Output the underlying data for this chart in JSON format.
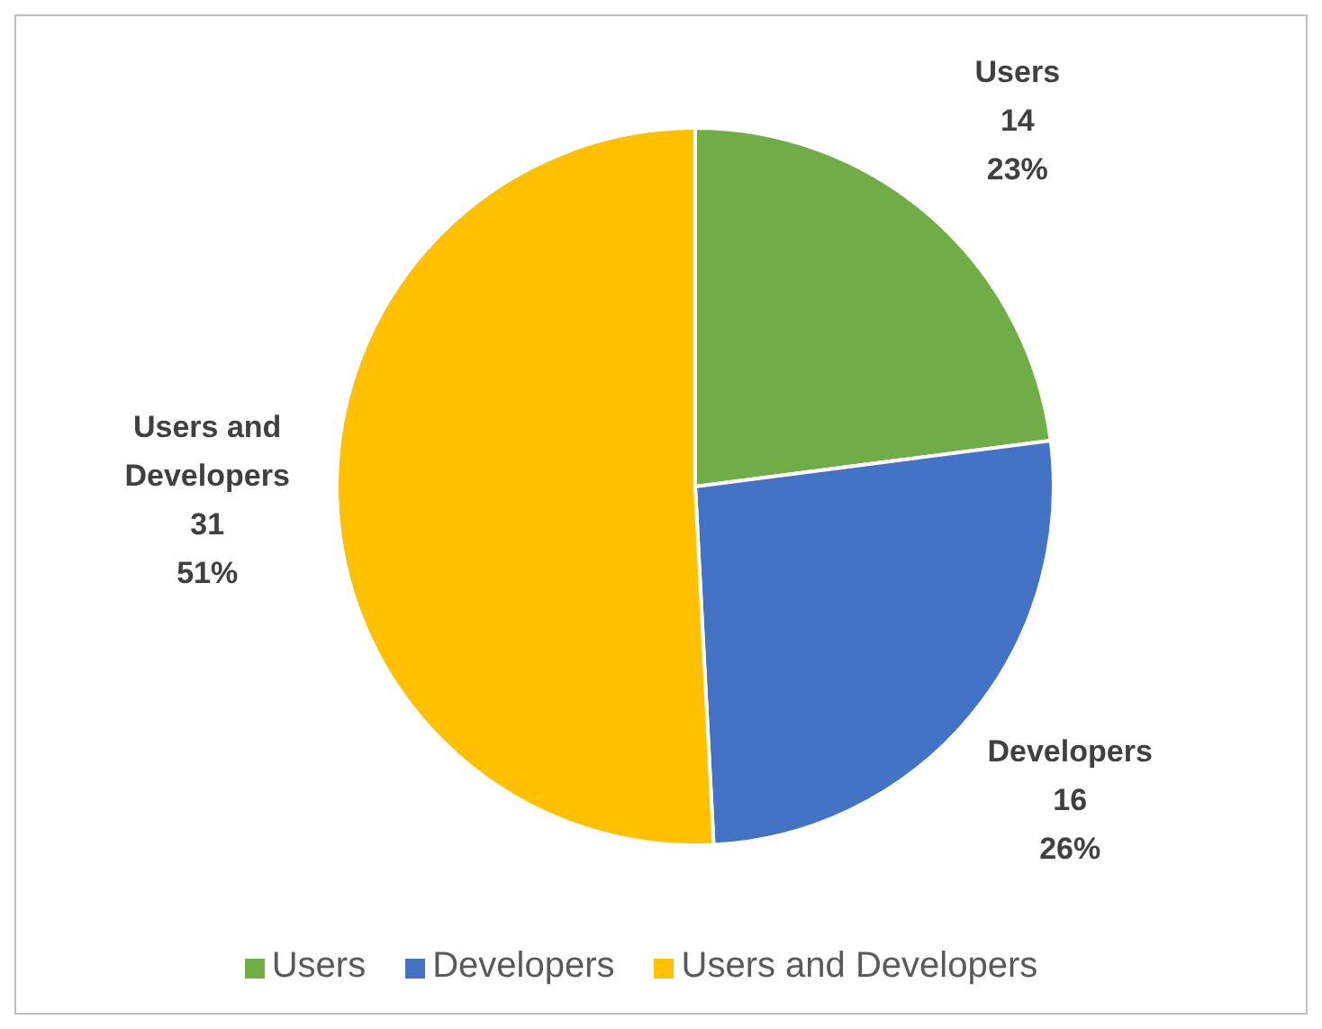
{
  "chart_data": {
    "type": "pie",
    "categories": [
      "Users",
      "Developers",
      "Users and Developers"
    ],
    "values": [
      14,
      16,
      31
    ],
    "colors": [
      "#70ad47",
      "#4472c4",
      "#ffc000"
    ],
    "value_labels": [
      "14\n23%",
      "16\n26%",
      "31\n51%"
    ],
    "legend": "bottom"
  }
}
